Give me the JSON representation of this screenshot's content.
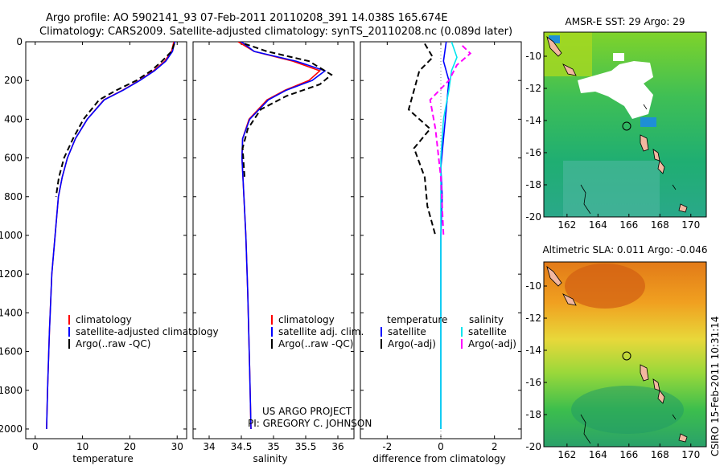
{
  "header": {
    "line1": "Argo profile: AO 5902141_93 07-Feb-2011 20110208_391 14.038S 165.674E",
    "line2": "Climatology: CARS2009. Satellite-adjusted climatology: synTS_20110208.nc (0.089d later)"
  },
  "side_stamp": "CSIRO 15-Feb-2011 10:31:14",
  "project_credit": {
    "line1": "US ARGO PROJECT",
    "line2": "PI: GREGORY C. JOHNSON"
  },
  "colors": {
    "climatology": "#ff0000",
    "satellite": "#0000ff",
    "argo": "#000000",
    "sat_salinity": "#00e5ee",
    "argo_salinity": "#ff00ff"
  },
  "chart_data": [
    {
      "type": "line",
      "name": "temperature-profile",
      "xlabel": "temperature",
      "ylabel": "",
      "xlim": [
        -2,
        32
      ],
      "ylim": [
        2050,
        0
      ],
      "xticks": [
        0,
        10,
        20,
        30
      ],
      "yticks": [
        0,
        200,
        400,
        600,
        800,
        1000,
        1200,
        1400,
        1600,
        1800,
        2000
      ],
      "series": [
        {
          "name": "climatology",
          "legend": "climatology",
          "style": "solid",
          "color": "#ff0000",
          "x": [
            29.3,
            28.8,
            27.4,
            25.0,
            22.0,
            18.5,
            14.5,
            11.0,
            8.5,
            6.8,
            5.7,
            4.9,
            4.2,
            3.5,
            3.0,
            2.6,
            2.4
          ],
          "y": [
            0,
            50,
            100,
            150,
            200,
            250,
            300,
            400,
            500,
            600,
            700,
            800,
            1000,
            1200,
            1500,
            1800,
            2000
          ]
        },
        {
          "name": "satellite-adjusted climatology",
          "legend": "satellite-adjusted climatology",
          "style": "solid",
          "color": "#0000ff",
          "x": [
            29.5,
            29.0,
            27.6,
            25.2,
            22.1,
            18.6,
            14.6,
            11.0,
            8.5,
            6.8,
            5.7,
            4.9,
            4.2,
            3.5,
            3.0,
            2.6,
            2.4
          ],
          "y": [
            0,
            50,
            100,
            150,
            200,
            250,
            300,
            400,
            500,
            600,
            700,
            800,
            1000,
            1200,
            1500,
            1800,
            2000
          ]
        },
        {
          "name": "Argo(..raw -QC)",
          "legend": "Argo(..raw -QC)",
          "style": "dashed",
          "color": "#000000",
          "x": [
            29.4,
            28.8,
            26.8,
            24.5,
            21.4,
            17.2,
            13.5,
            10.2,
            8.0,
            6.1,
            5.0,
            4.4
          ],
          "y": [
            10,
            50,
            100,
            150,
            200,
            250,
            300,
            400,
            500,
            600,
            700,
            800
          ]
        }
      ]
    },
    {
      "type": "line",
      "name": "salinity-profile",
      "xlabel": "salinity",
      "xlim": [
        33.75,
        36.25
      ],
      "ylim": [
        2050,
        0
      ],
      "xticks": [
        34,
        34.5,
        35,
        35.5,
        36
      ],
      "series": [
        {
          "name": "climatology",
          "legend": "climatology",
          "style": "solid",
          "color": "#ff0000",
          "x": [
            34.45,
            34.7,
            35.3,
            35.72,
            35.55,
            35.18,
            34.9,
            34.62,
            34.52,
            34.51,
            34.54,
            34.57,
            34.6,
            34.63,
            34.65
          ],
          "y": [
            0,
            50,
            100,
            150,
            200,
            250,
            300,
            400,
            500,
            600,
            800,
            1000,
            1300,
            1700,
            2000
          ]
        },
        {
          "name": "satellite adj. clim.",
          "legend": "satellite adj. clim.",
          "style": "solid",
          "color": "#0000ff",
          "x": [
            34.5,
            34.7,
            35.35,
            35.8,
            35.6,
            35.2,
            34.92,
            34.63,
            34.52,
            34.51,
            34.54,
            34.57,
            34.6,
            34.63,
            34.65
          ],
          "y": [
            0,
            50,
            100,
            150,
            200,
            250,
            300,
            400,
            500,
            600,
            800,
            1000,
            1300,
            1700,
            2000
          ]
        },
        {
          "name": "Argo(..raw -QC)",
          "legend": "Argo(..raw -QC)",
          "style": "dashed",
          "color": "#000000",
          "x": [
            34.55,
            34.9,
            35.55,
            35.9,
            35.72,
            35.2,
            34.8,
            34.6,
            34.52,
            34.55
          ],
          "y": [
            10,
            50,
            100,
            170,
            220,
            280,
            350,
            450,
            550,
            700
          ]
        }
      ]
    },
    {
      "type": "line",
      "name": "difference-profile",
      "xlabel": "difference from climatology",
      "xlim": [
        -3,
        3
      ],
      "ylim": [
        2050,
        0
      ],
      "xticks": [
        -2,
        0,
        2
      ],
      "legend_group_titles": [
        "temperature",
        "salinity"
      ],
      "series": [
        {
          "name": "temperature satellite",
          "legend": "satellite",
          "style": "solid",
          "color": "#0000ff",
          "x": [
            0.2,
            0.1,
            0.3,
            0.2,
            0.1,
            0.0,
            0.05,
            0.0,
            0.0
          ],
          "y": [
            0,
            100,
            200,
            350,
            500,
            650,
            800,
            1000,
            2000
          ]
        },
        {
          "name": "temperature Argo(-adj)",
          "legend": "Argo(-adj)",
          "style": "dashed",
          "color": "#000000",
          "x": [
            -0.6,
            -0.3,
            -0.8,
            -1.0,
            -1.2,
            -0.4,
            -1.0,
            -0.6,
            -0.5,
            -0.2
          ],
          "y": [
            10,
            80,
            150,
            250,
            350,
            450,
            550,
            700,
            850,
            1000
          ]
        },
        {
          "name": "salinity satellite",
          "legend": "satellite",
          "style": "solid",
          "color": "#00e5ee",
          "x": [
            0.4,
            0.6,
            0.4,
            0.3,
            0.1,
            0.0,
            0.0,
            0.0
          ],
          "y": [
            0,
            80,
            150,
            250,
            400,
            600,
            1000,
            2000
          ]
        },
        {
          "name": "salinity Argo(-adj)",
          "legend": "Argo(-adj)",
          "style": "dashed",
          "color": "#ff00ff",
          "x": [
            0.8,
            1.1,
            0.6,
            0.3,
            -0.4,
            -0.2,
            0.0,
            0.1
          ],
          "y": [
            20,
            60,
            120,
            200,
            300,
            450,
            700,
            1000
          ]
        }
      ]
    },
    {
      "type": "heatmap",
      "name": "sst-map",
      "title": "AMSR-E SST: 29 Argo: 29",
      "xlim": [
        160.5,
        171
      ],
      "ylim": [
        -20,
        -8.5
      ],
      "xticks": [
        162,
        164,
        166,
        168,
        170
      ],
      "yticks": [
        -10,
        -12,
        -14,
        -16,
        -18,
        -20
      ],
      "argo_position": {
        "lon": 165.674,
        "lat": -14.038
      }
    },
    {
      "type": "heatmap",
      "name": "sla-map",
      "title": "Altimetric SLA: 0.011 Argo: -0.046",
      "xlim": [
        160.5,
        171
      ],
      "ylim": [
        -20,
        -8.5
      ],
      "xticks": [
        162,
        164,
        166,
        168,
        170
      ],
      "yticks": [
        -10,
        -12,
        -14,
        -16,
        -18,
        -20
      ],
      "argo_position": {
        "lon": 165.674,
        "lat": -14.038
      }
    }
  ]
}
